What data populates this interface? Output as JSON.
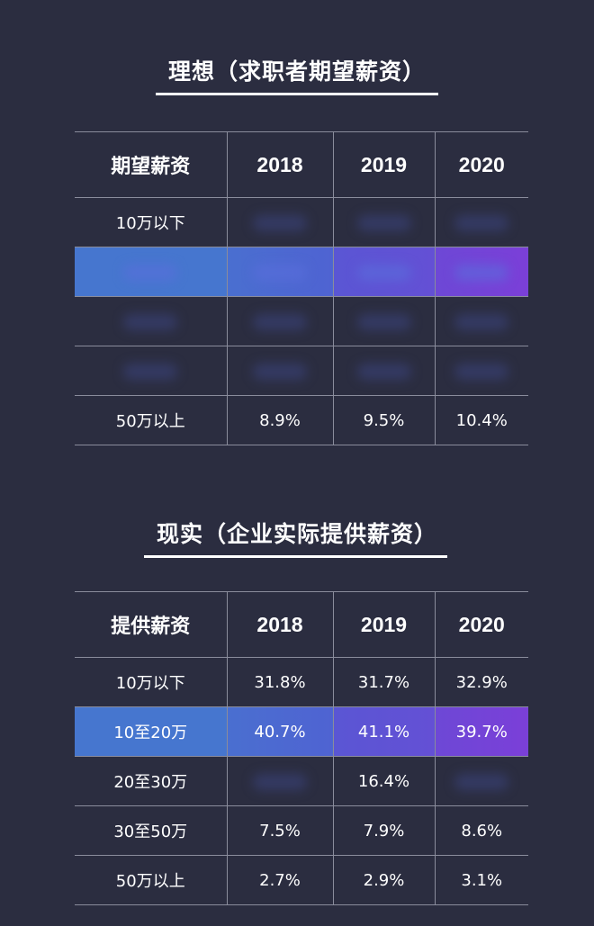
{
  "sections": [
    {
      "title": "理想（求职者期望薪资）",
      "header": [
        "期望薪资",
        "2018",
        "2019",
        "2020"
      ],
      "rows": [
        {
          "label": "10万以下",
          "values": [
            "",
            "",
            ""
          ]
        },
        {
          "label": "",
          "values": [
            "",
            "",
            ""
          ],
          "highlight": true
        },
        {
          "label": "",
          "values": [
            "",
            "",
            ""
          ]
        },
        {
          "label": "",
          "values": [
            "",
            "",
            ""
          ]
        },
        {
          "label": "50万以上",
          "values": [
            "8.9%",
            "9.5%",
            "10.4%"
          ]
        }
      ]
    },
    {
      "title": "现实（企业实际提供薪资）",
      "header": [
        "提供薪资",
        "2018",
        "2019",
        "2020"
      ],
      "rows": [
        {
          "label": "10万以下",
          "values": [
            "31.8%",
            "31.7%",
            "32.9%"
          ]
        },
        {
          "label": "10至20万",
          "values": [
            "40.7%",
            "41.1%",
            "39.7%"
          ],
          "highlight": true
        },
        {
          "label": "20至30万",
          "values": [
            "",
            "16.4%",
            ""
          ]
        },
        {
          "label": "30至50万",
          "values": [
            "7.5%",
            "7.9%",
            "8.6%"
          ]
        },
        {
          "label": "50万以上",
          "values": [
            "2.7%",
            "2.9%",
            "3.1%"
          ]
        }
      ]
    }
  ],
  "colors": {
    "background": "#2b2d40",
    "grid": "#8a8c9c",
    "highlight_start": "#4676cf",
    "highlight_end": "#7a3ed8"
  }
}
